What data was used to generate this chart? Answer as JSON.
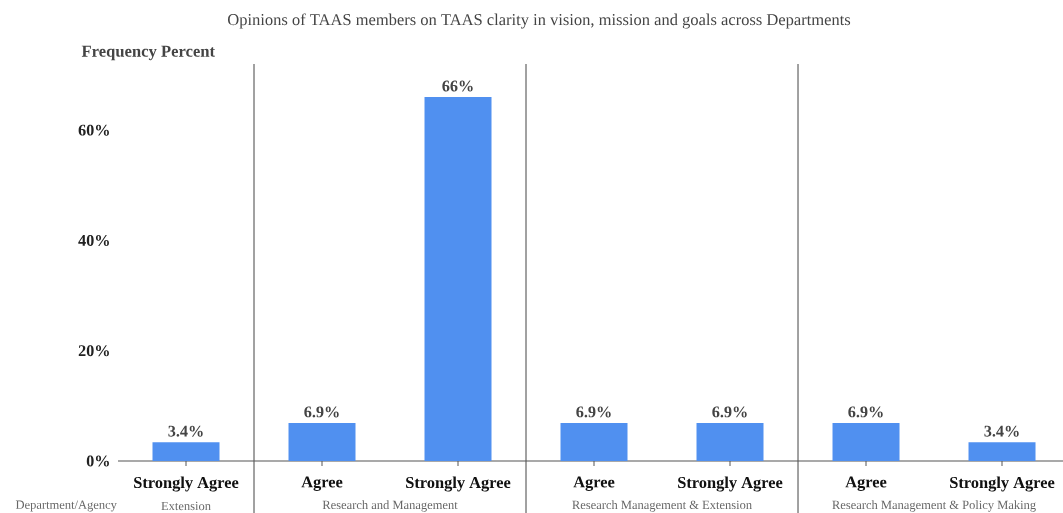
{
  "chart_data": [
    {
      "type": "bar",
      "ylabel": "Frequency Percent",
      "xlabel": "Extension",
      "annotations": [
        "Department/Agency"
      ],
      "categories": [
        "Strongly Agree"
      ],
      "values": [
        3.4
      ],
      "value_labels": [
        "3.4%"
      ],
      "color": "#5090f0",
      "ylim": [
        0,
        60
      ],
      "yticks": [
        {
          "value": 0,
          "label": "0%"
        },
        {
          "value": 20,
          "label": "20%"
        },
        {
          "value": 40,
          "label": "40%"
        },
        {
          "value": 60,
          "label": "60%"
        }
      ]
    },
    {
      "type": "bar",
      "xlabel": "Research and Management",
      "categories": [
        "Agree",
        "Strongly Agree"
      ],
      "values": [
        6.9,
        66
      ],
      "value_labels": [
        "6.9%",
        "66%"
      ],
      "color": "#5090f0",
      "ylim": [
        0,
        72
      ],
      "tick_labels": "x"
    },
    {
      "type": "bar",
      "title": "Opinions of TAAS members on TAAS clarity in vision, mission and goals across Departments",
      "xlabel": "Research Management & Extension",
      "categories": [
        "Agree",
        "Strongly Agree"
      ],
      "values": [
        6.9,
        6.9
      ],
      "value_labels": [
        "6.9%",
        "6.9%"
      ],
      "color": "#5090f0",
      "ylim": [
        0,
        72
      ],
      "tick_labels": "x"
    },
    {
      "type": "bar",
      "xlabel": "Research Management & Policy Making",
      "categories": [
        "Agree",
        "Strongly Agree"
      ],
      "values": [
        6.9,
        3.4
      ],
      "value_labels": [
        "6.9%",
        "3.4%"
      ],
      "color": "#5090f0",
      "ylim": [
        0,
        72
      ],
      "tick_labels": "x"
    }
  ]
}
